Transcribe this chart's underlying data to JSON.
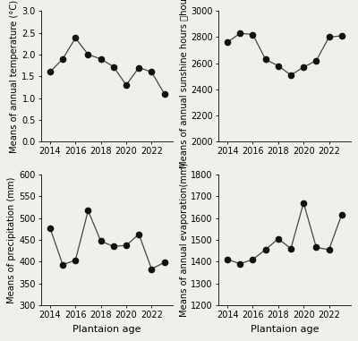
{
  "temp": {
    "x": [
      2014,
      2015,
      2016,
      2017,
      2018,
      2019,
      2020,
      2021,
      2022,
      2023
    ],
    "y": [
      1.6,
      1.9,
      2.38,
      2.0,
      1.9,
      1.72,
      1.3,
      1.7,
      1.6,
      1.1
    ],
    "ylabel": "Means of annual temperature (°C)",
    "ylim": [
      0.0,
      3.0
    ],
    "yticks": [
      0.0,
      0.5,
      1.0,
      1.5,
      2.0,
      2.5,
      3.0
    ]
  },
  "sunshine": {
    "x": [
      2014,
      2015,
      2016,
      2017,
      2018,
      2019,
      2020,
      2021,
      2022,
      2023
    ],
    "y": [
      2760,
      2830,
      2820,
      2630,
      2580,
      2510,
      2570,
      2620,
      2800,
      2810
    ],
    "ylabel": "Means of annual sunshine hours （hours）",
    "ylim": [
      2000,
      3000
    ],
    "yticks": [
      2000,
      2200,
      2400,
      2600,
      2800,
      3000
    ]
  },
  "precip": {
    "x": [
      2014,
      2015,
      2016,
      2017,
      2018,
      2019,
      2020,
      2021,
      2022,
      2023
    ],
    "y": [
      477,
      393,
      403,
      517,
      447,
      435,
      437,
      463,
      383,
      398
    ],
    "ylabel": "Means of precipitation (mm)",
    "ylim": [
      300,
      600
    ],
    "yticks": [
      300,
      350,
      400,
      450,
      500,
      550,
      600
    ]
  },
  "evap": {
    "x": [
      2014,
      2015,
      2016,
      2017,
      2018,
      2019,
      2020,
      2021,
      2022,
      2023
    ],
    "y": [
      1410,
      1390,
      1410,
      1455,
      1505,
      1460,
      1670,
      1465,
      1455,
      1615
    ],
    "ylabel": "Means of annual evaporation(mm)",
    "ylim": [
      1200,
      1800
    ],
    "yticks": [
      1200,
      1300,
      1400,
      1500,
      1600,
      1700,
      1800
    ]
  },
  "xlabel": "Plantaion age",
  "xticks": [
    2014,
    2016,
    2018,
    2020,
    2022
  ],
  "xlim": [
    2013.3,
    2023.7
  ],
  "line_color": "#444444",
  "marker": "o",
  "markersize": 4.5,
  "markerfacecolor": "#111111",
  "markeredgecolor": "#111111",
  "linewidth": 0.9,
  "bg_color": "#f0f0eb",
  "tick_fontsize": 7,
  "label_fontsize": 7.2
}
